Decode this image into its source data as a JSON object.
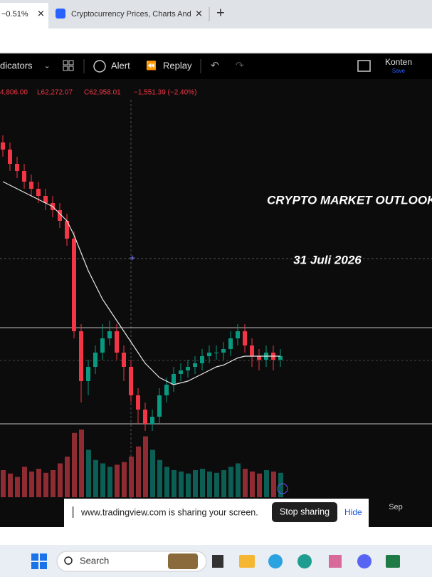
{
  "browser": {
    "tabs": [
      {
        "label": "−0.51%"
      },
      {
        "label": "Cryptocurrency Prices, Charts And"
      }
    ]
  },
  "toolbar": {
    "indicators": "dicators",
    "alert": "Alert",
    "replay": "Replay",
    "konten": "Konten",
    "save": "Save"
  },
  "legend": {
    "open": "4,806.00",
    "low": "L62,272.07",
    "close": "C62,958.01",
    "change": "−1,551.39 (−2.40%)"
  },
  "overlay": {
    "title": "CRYPTO MARKET OUTLOOK",
    "date": "31 Juli 2026"
  },
  "chart": {
    "x_label": "Sep",
    "ylim": [
      53000,
      71000
    ],
    "levels": [
      59400,
      54000
    ],
    "open": [
      69800,
      69400,
      68600,
      68200,
      67600,
      67200,
      66800,
      66400,
      66000,
      65400,
      64400,
      59200,
      56400,
      57200,
      58000,
      58800,
      59200,
      58000,
      57200,
      55600,
      54800,
      54000,
      54400,
      55600,
      56200,
      56800,
      57000,
      57200,
      57400,
      57800,
      58000,
      58000,
      58200,
      58800,
      59200,
      58400,
      57800,
      57600,
      58000,
      57600
    ],
    "high": [
      70200,
      69800,
      69000,
      68600,
      68000,
      67600,
      67200,
      66800,
      66400,
      65800,
      64800,
      59600,
      57600,
      58400,
      59600,
      59800,
      59600,
      58400,
      57600,
      56000,
      55200,
      54800,
      56000,
      56600,
      57200,
      57400,
      57600,
      57800,
      58200,
      58400,
      58400,
      58600,
      59200,
      59600,
      59600,
      58800,
      58200,
      58400,
      58400,
      58200
    ],
    "low": [
      69000,
      68200,
      67800,
      67200,
      66800,
      66400,
      66000,
      65600,
      65000,
      64000,
      58800,
      55200,
      55600,
      56800,
      57600,
      58400,
      57600,
      56400,
      55200,
      54000,
      53600,
      53600,
      54000,
      55200,
      55800,
      56400,
      56600,
      56800,
      57000,
      57400,
      57600,
      57600,
      57800,
      58400,
      58000,
      57200,
      57000,
      57200,
      57000,
      57200
    ],
    "close": [
      69400,
      68600,
      68200,
      67600,
      67200,
      66800,
      66400,
      66000,
      65400,
      64400,
      59200,
      56400,
      57200,
      58000,
      58800,
      59200,
      58000,
      57200,
      55600,
      54800,
      54000,
      54400,
      55600,
      56200,
      56800,
      57000,
      57200,
      57400,
      57800,
      58000,
      58000,
      58200,
      58800,
      59200,
      58400,
      57800,
      57600,
      58000,
      57600,
      57800
    ],
    "ma": [
      67600,
      67400,
      67200,
      67000,
      66800,
      66600,
      66400,
      66200,
      65800,
      65400,
      64600,
      63600,
      62600,
      61800,
      61000,
      60400,
      59800,
      59200,
      58600,
      58000,
      57400,
      57000,
      56600,
      56400,
      56200,
      56300,
      56400,
      56600,
      56800,
      57000,
      57200,
      57300,
      57500,
      57700,
      57800,
      57800,
      57800,
      57800,
      57800,
      57800
    ],
    "volume": [
      40,
      35,
      30,
      45,
      38,
      42,
      36,
      40,
      50,
      60,
      95,
      100,
      70,
      55,
      50,
      45,
      48,
      52,
      60,
      75,
      90,
      70,
      55,
      45,
      40,
      38,
      35,
      40,
      42,
      38,
      36,
      40,
      45,
      50,
      42,
      38,
      35,
      40,
      38,
      36
    ]
  },
  "share_bar": {
    "message": "www.tradingview.com is sharing your screen.",
    "stop": "Stop sharing",
    "hide": "Hide"
  },
  "taskbar": {
    "search": "Search"
  }
}
